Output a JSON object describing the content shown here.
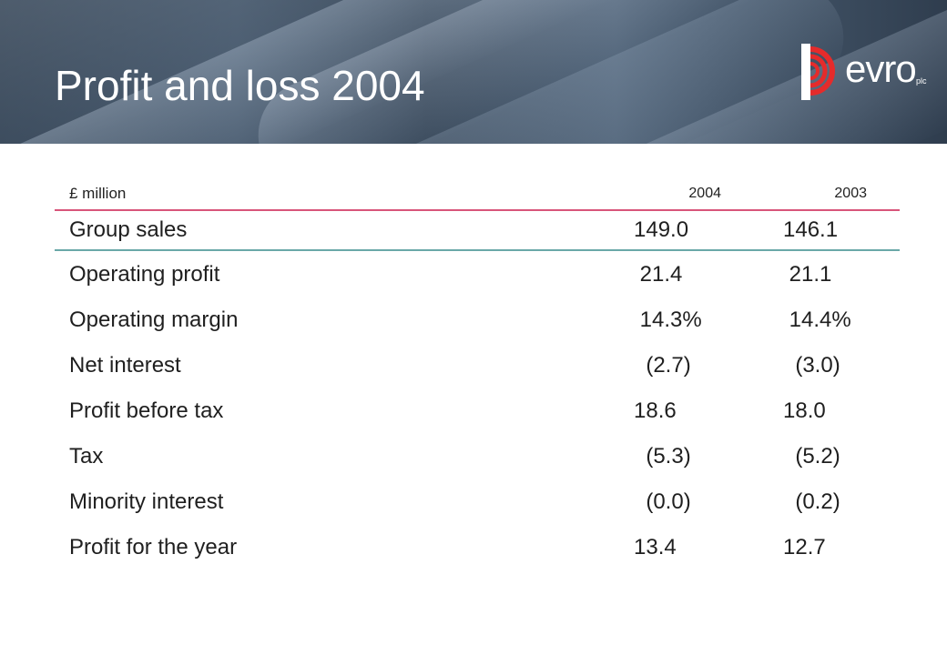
{
  "header": {
    "title": "Profit and loss 2004",
    "logo": {
      "wordmark": "evro",
      "suffix": "plc",
      "accent_color": "#e52b2b"
    }
  },
  "table": {
    "unit_label": "£ million",
    "columns": [
      "2004",
      "2003"
    ],
    "rows": [
      {
        "label": "Group sales",
        "v2004": "149.0",
        "v2003": "146.1"
      },
      {
        "label": "Operating profit",
        "v2004": " 21.4",
        "v2003": " 21.1"
      },
      {
        "label": "Operating margin",
        "v2004": " 14.3%",
        "v2003": " 14.4%"
      },
      {
        "label": "Net interest",
        "v2004": "  (2.7)",
        "v2003": "  (3.0)"
      },
      {
        "label": "Profit before tax",
        "v2004": "18.6",
        "v2003": "18.0"
      },
      {
        "label": "Tax",
        "v2004": "  (5.3)",
        "v2003": "  (5.2)"
      },
      {
        "label": "Minority interest",
        "v2004": "  (0.0)",
        "v2003": "  (0.2)"
      },
      {
        "label": "Profit for the year",
        "v2004": "13.4",
        "v2003": "12.7"
      }
    ]
  },
  "colors": {
    "header_rule": "#d8557a",
    "first_row_rule": "#6aa8a8",
    "banner_base": "#3f5063"
  }
}
